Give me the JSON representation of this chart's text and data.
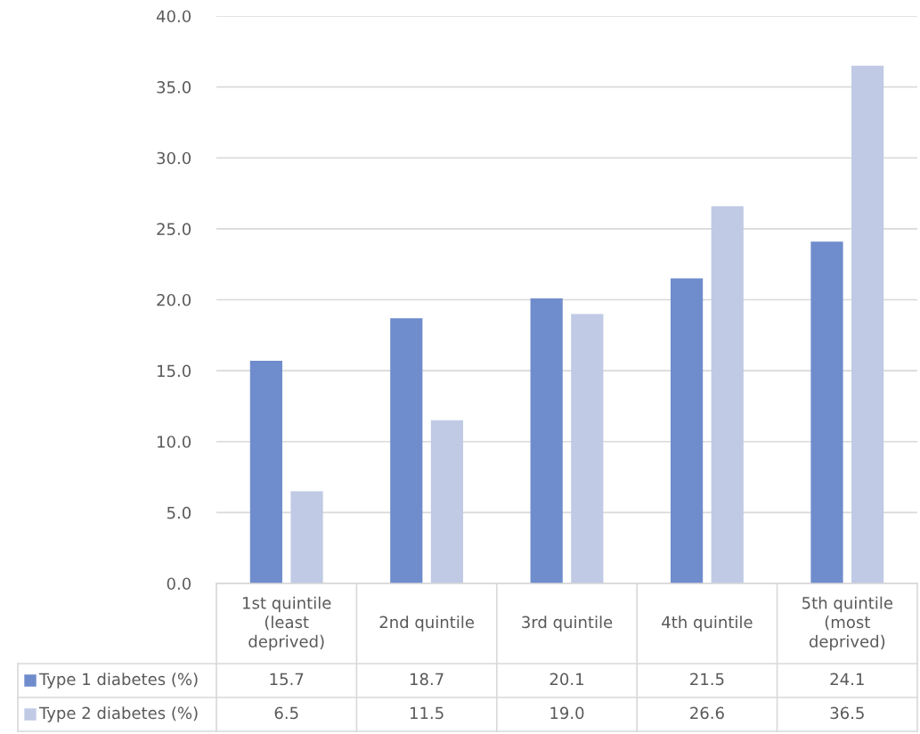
{
  "chart_data": {
    "type": "bar",
    "categories": [
      "1st quintile\n(least\ndeprived)",
      "2nd quintile",
      "3rd quintile",
      "4th quintile",
      "5th quintile\n(most\ndeprived)"
    ],
    "series": [
      {
        "name": "Type 1 diabetes (%)",
        "color": "#6f8ccc",
        "values": [
          15.7,
          18.7,
          20.1,
          21.5,
          24.1
        ],
        "value_labels": [
          "15.7",
          "18.7",
          "20.1",
          "21.5",
          "24.1"
        ]
      },
      {
        "name": "Type 2 diabetes (%)",
        "color": "#c0cae5",
        "values": [
          6.5,
          11.5,
          19.0,
          26.6,
          36.5
        ],
        "value_labels": [
          "6.5",
          "11.5",
          "19.0",
          "26.6",
          "36.5"
        ]
      }
    ],
    "ylim": [
      0,
      40
    ],
    "yticks": [
      {
        "value": 0,
        "label": "0.0"
      },
      {
        "value": 5,
        "label": "5.0"
      },
      {
        "value": 10,
        "label": "10.0"
      },
      {
        "value": 15,
        "label": "15.0"
      },
      {
        "value": 20,
        "label": "20.0"
      },
      {
        "value": 25,
        "label": "25.0"
      },
      {
        "value": 30,
        "label": "30.0"
      },
      {
        "value": 35,
        "label": "35.0"
      },
      {
        "value": 40,
        "label": "40.0"
      }
    ],
    "grid": "y",
    "legend": "bottom"
  }
}
